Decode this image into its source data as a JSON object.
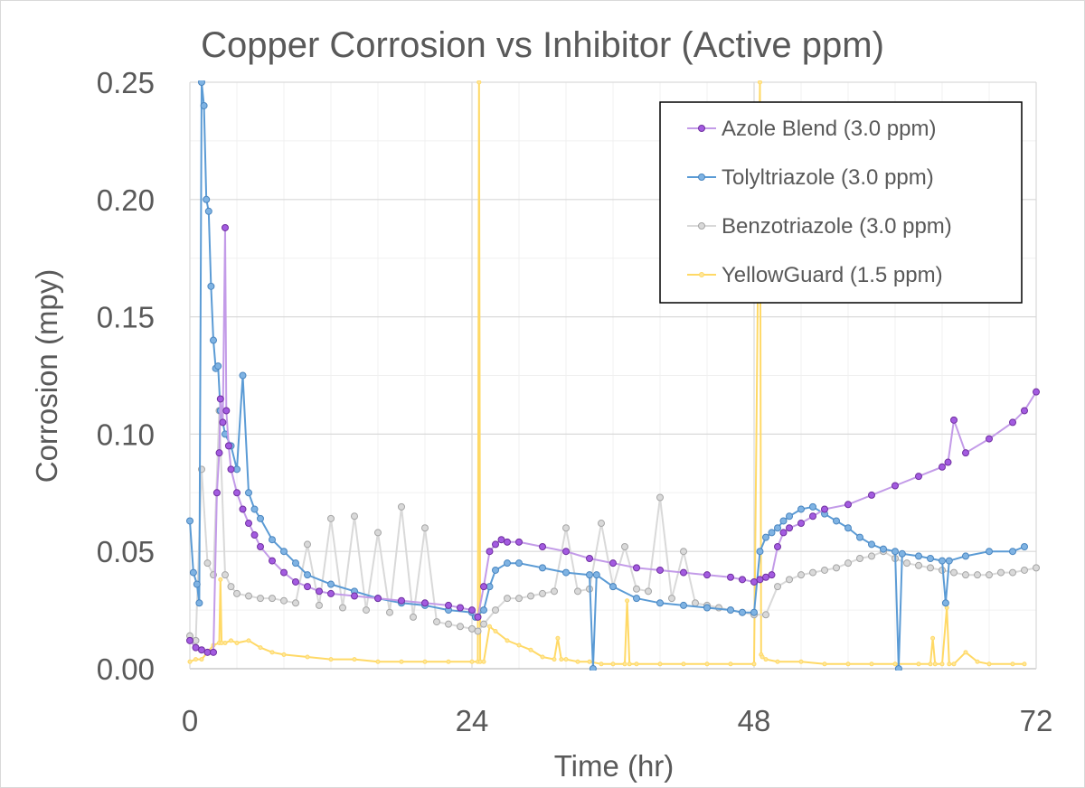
{
  "chart_data": {
    "type": "line",
    "title": "Copper Corrosion vs Inhibitor (Active ppm)",
    "xlabel": "Time (hr)",
    "ylabel": "Corrosion (mpy)",
    "xlim": [
      0,
      72
    ],
    "ylim": [
      0,
      0.25
    ],
    "x_ticks": [
      0,
      24,
      48,
      72
    ],
    "x_tick_labels": [
      "0",
      "24",
      "48",
      "72"
    ],
    "y_ticks": [
      0,
      0.05,
      0.1,
      0.15,
      0.2,
      0.25
    ],
    "y_tick_labels": [
      "0.00",
      "0.05",
      "0.10",
      "0.15",
      "0.20",
      "0.25"
    ],
    "x_minor_step": 4,
    "y_minor_step": 0.025,
    "grid": true,
    "legend_position": "top-right",
    "series": [
      {
        "name": "Azole Blend (3.0 ppm)",
        "line_color": "#c39be8",
        "marker_fill": "#a35be0",
        "marker_edge": "#7030a0",
        "marker": "circle",
        "x": [
          0,
          0.5,
          1,
          1.5,
          2,
          2.3,
          2.5,
          2.6,
          2.8,
          3,
          3.1,
          3.3,
          3.5,
          4,
          4.5,
          5,
          5.5,
          6,
          7,
          8,
          9,
          10,
          11,
          12,
          14,
          16,
          18,
          20,
          22,
          23,
          24,
          24.5,
          25,
          25.5,
          26,
          26.5,
          27,
          28,
          30,
          32,
          34,
          36,
          38,
          40,
          42,
          44,
          46,
          47,
          48,
          48.5,
          49,
          49.5,
          50,
          50.5,
          51,
          52,
          53,
          54,
          56,
          58,
          60,
          62,
          64,
          64.5,
          65,
          66,
          68,
          70,
          71,
          72
        ],
        "y": [
          0.012,
          0.009,
          0.008,
          0.007,
          0.007,
          0.075,
          0.092,
          0.115,
          0.105,
          0.188,
          0.11,
          0.095,
          0.085,
          0.075,
          0.068,
          0.062,
          0.057,
          0.052,
          0.046,
          0.041,
          0.037,
          0.035,
          0.033,
          0.032,
          0.031,
          0.03,
          0.029,
          0.028,
          0.027,
          0.026,
          0.025,
          0.022,
          0.035,
          0.05,
          0.053,
          0.055,
          0.054,
          0.054,
          0.052,
          0.05,
          0.047,
          0.045,
          0.043,
          0.042,
          0.041,
          0.04,
          0.039,
          0.038,
          0.037,
          0.038,
          0.039,
          0.04,
          0.052,
          0.058,
          0.06,
          0.062,
          0.065,
          0.068,
          0.07,
          0.074,
          0.078,
          0.082,
          0.086,
          0.088,
          0.106,
          0.092,
          0.098,
          0.105,
          0.11,
          0.118
        ]
      },
      {
        "name": "Tolyltriazole (3.0 ppm)",
        "line_color": "#5b9bd5",
        "marker_fill": "#7fb3e3",
        "marker_edge": "#4a86c0",
        "marker": "circle",
        "x": [
          0,
          0.3,
          0.6,
          0.8,
          1,
          1.2,
          1.4,
          1.6,
          1.8,
          2,
          2.2,
          2.4,
          2.6,
          3,
          3.5,
          4,
          4.5,
          5,
          5.5,
          6,
          7,
          8,
          9,
          10,
          12,
          14,
          16,
          18,
          20,
          22,
          24,
          24.3,
          25,
          25.5,
          26,
          27,
          28,
          30,
          32,
          34,
          34.3,
          34.6,
          36,
          38,
          40,
          42,
          44,
          46,
          47,
          48,
          48.5,
          49,
          49.5,
          50,
          50.5,
          51,
          52,
          53,
          54,
          55,
          56,
          57,
          58,
          59,
          60,
          60.3,
          60.6,
          62,
          63,
          64,
          64.3,
          64.6,
          66,
          68,
          70,
          71
        ],
        "y": [
          0.063,
          0.041,
          0.036,
          0.028,
          0.25,
          0.24,
          0.2,
          0.195,
          0.163,
          0.14,
          0.128,
          0.129,
          0.11,
          0.1,
          0.095,
          0.085,
          0.125,
          0.075,
          0.068,
          0.064,
          0.055,
          0.05,
          0.045,
          0.04,
          0.036,
          0.033,
          0.03,
          0.028,
          0.027,
          0.025,
          0.024,
          0.022,
          0.025,
          0.035,
          0.042,
          0.045,
          0.045,
          0.043,
          0.041,
          0.04,
          0.0,
          0.04,
          0.035,
          0.03,
          0.028,
          0.027,
          0.026,
          0.025,
          0.024,
          0.024,
          0.05,
          0.056,
          0.058,
          0.06,
          0.063,
          0.065,
          0.068,
          0.069,
          0.066,
          0.063,
          0.06,
          0.056,
          0.053,
          0.051,
          0.05,
          0.0,
          0.049,
          0.048,
          0.047,
          0.046,
          0.028,
          0.046,
          0.048,
          0.05,
          0.05,
          0.052
        ]
      },
      {
        "name": "Benzotriazole (3.0 ppm)",
        "line_color": "#d9d9d9",
        "marker_fill": "#d9d9d9",
        "marker_edge": "#a6a6a6",
        "marker": "circle",
        "x": [
          0,
          0.5,
          1,
          1.5,
          2,
          2.5,
          3,
          3.5,
          4,
          5,
          6,
          7,
          8,
          9,
          10,
          11,
          12,
          13,
          14,
          15,
          16,
          17,
          18,
          19,
          20,
          21,
          22,
          23,
          24,
          24.5,
          25,
          26,
          27,
          28,
          29,
          30,
          31,
          32,
          33,
          34,
          35,
          36,
          37,
          38,
          39,
          40,
          41,
          42,
          43,
          44,
          45,
          46,
          47,
          48,
          49,
          50,
          51,
          52,
          53,
          54,
          55,
          56,
          57,
          58,
          59,
          60,
          61,
          62,
          63,
          64,
          65,
          66,
          67,
          68,
          69,
          70,
          71,
          72
        ],
        "y": [
          0.014,
          0.012,
          0.085,
          0.045,
          0.04,
          0.11,
          0.04,
          0.035,
          0.032,
          0.031,
          0.03,
          0.03,
          0.029,
          0.028,
          0.053,
          0.027,
          0.064,
          0.026,
          0.065,
          0.025,
          0.058,
          0.024,
          0.069,
          0.022,
          0.06,
          0.02,
          0.019,
          0.018,
          0.017,
          0.016,
          0.019,
          0.025,
          0.03,
          0.03,
          0.031,
          0.032,
          0.033,
          0.06,
          0.033,
          0.034,
          0.062,
          0.035,
          0.052,
          0.034,
          0.033,
          0.073,
          0.03,
          0.05,
          0.028,
          0.027,
          0.026,
          0.025,
          0.024,
          0.023,
          0.023,
          0.035,
          0.038,
          0.04,
          0.041,
          0.042,
          0.043,
          0.045,
          0.047,
          0.048,
          0.05,
          0.047,
          0.045,
          0.044,
          0.043,
          0.042,
          0.041,
          0.04,
          0.04,
          0.04,
          0.041,
          0.041,
          0.042,
          0.043
        ]
      },
      {
        "name": "YellowGuard (1.5 ppm)",
        "line_color": "#ffd966",
        "marker_fill": "#ffe699",
        "marker_edge": "#ffd966",
        "marker": "small",
        "x": [
          0,
          0.5,
          1,
          1.5,
          2,
          2.5,
          2.6,
          2.7,
          3,
          3.5,
          4,
          5,
          6,
          7,
          8,
          10,
          12,
          14,
          16,
          18,
          20,
          22,
          24,
          24.5,
          24.6,
          24.7,
          25,
          25.5,
          26,
          27,
          28,
          29,
          30,
          31,
          31.3,
          31.6,
          32,
          33,
          34,
          35,
          36,
          37,
          37.2,
          37.4,
          38,
          40,
          42,
          44,
          46,
          48,
          48.5,
          48.6,
          48.7,
          49,
          50,
          52,
          54,
          56,
          58,
          60,
          62,
          63,
          63.2,
          63.4,
          64,
          64.4,
          64.6,
          65,
          66,
          67,
          68,
          70,
          71
        ],
        "y": [
          0.003,
          0.004,
          0.004,
          0.007,
          0.01,
          0.011,
          0.038,
          0.011,
          0.011,
          0.012,
          0.011,
          0.012,
          0.009,
          0.007,
          0.006,
          0.005,
          0.004,
          0.004,
          0.003,
          0.003,
          0.003,
          0.003,
          0.003,
          0.003,
          0.25,
          0.003,
          0.003,
          0.018,
          0.016,
          0.012,
          0.01,
          0.008,
          0.005,
          0.004,
          0.013,
          0.004,
          0.004,
          0.003,
          0.003,
          0.002,
          0.002,
          0.002,
          0.029,
          0.002,
          0.002,
          0.002,
          0.002,
          0.002,
          0.002,
          0.002,
          0.25,
          0.006,
          0.005,
          0.004,
          0.003,
          0.003,
          0.002,
          0.002,
          0.002,
          0.002,
          0.002,
          0.002,
          0.013,
          0.002,
          0.002,
          0.026,
          0.002,
          0.002,
          0.007,
          0.003,
          0.002,
          0.002,
          0.002
        ]
      }
    ]
  }
}
